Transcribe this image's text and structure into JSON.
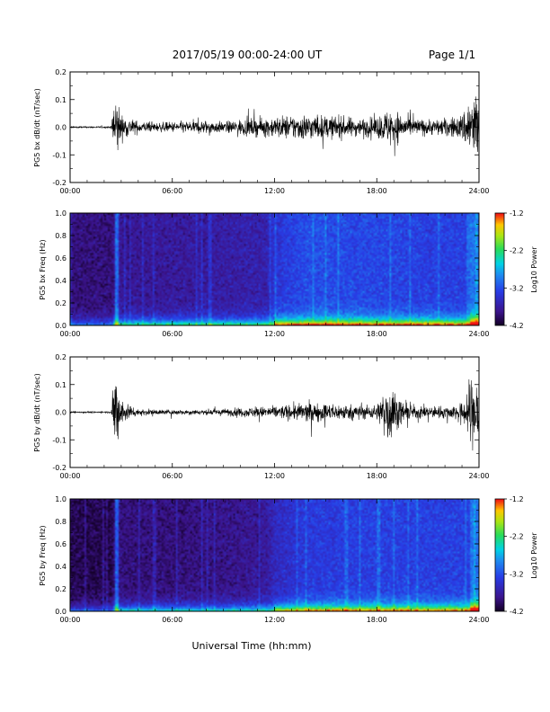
{
  "header": {
    "title": "2017/05/19  00:00-24:00 UT",
    "page": "Page 1/1"
  },
  "xlabel": "Universal Time (hh:mm)",
  "colorbar": {
    "label": "Log10 Power",
    "ticks": [
      "-1.2",
      "-2.2",
      "-3.2",
      "-4.2"
    ]
  },
  "chart_data": [
    {
      "type": "line",
      "title": "",
      "ylabel": "PG5 bx dB/dt (nT/sec)",
      "xlabel": "",
      "xlim": [
        "00:00",
        "24:00"
      ],
      "ylim": [
        -0.2,
        0.2
      ],
      "xticks": [
        "00:00",
        "06:00",
        "12:00",
        "18:00",
        "24:00"
      ],
      "yticks": [
        "0.2",
        "0.1",
        "0.0",
        "-0.1",
        "-0.2"
      ],
      "series": [
        {
          "x_hours": [
            0,
            2.4,
            2.6,
            2.7,
            3.0,
            3.5,
            4,
            5,
            6,
            7,
            8,
            9,
            10,
            11,
            12,
            13,
            14,
            15,
            16,
            17,
            18,
            18.8,
            19.2,
            20,
            21,
            22,
            23,
            23.5,
            24
          ],
          "amplitude": [
            0.005,
            0.005,
            0.2,
            0.2,
            0.07,
            0.05,
            0.035,
            0.025,
            0.03,
            0.035,
            0.04,
            0.03,
            0.045,
            0.05,
            0.06,
            0.07,
            0.075,
            0.065,
            0.06,
            0.05,
            0.06,
            0.11,
            0.09,
            0.05,
            0.045,
            0.05,
            0.07,
            0.2,
            0.2
          ]
        }
      ]
    },
    {
      "type": "heatmap",
      "title": "",
      "ylabel": "PG5 bx Freq (Hz)",
      "xlabel": "",
      "xlim": [
        "00:00",
        "24:00"
      ],
      "ylim": [
        0.0,
        1.0
      ],
      "xticks": [
        "00:00",
        "06:00",
        "12:00",
        "18:00",
        "24:00"
      ],
      "yticks": [
        "1.0",
        "0.8",
        "0.6",
        "0.4",
        "0.2",
        "0.0"
      ],
      "colorbar": {
        "min": -4.2,
        "max": -1.2
      },
      "background_log_power_by_hour": [
        [
          0,
          -3.9
        ],
        [
          2.5,
          -3.9
        ],
        [
          2.6,
          -3.6
        ],
        [
          3,
          -3.8
        ],
        [
          6,
          -3.75
        ],
        [
          9,
          -3.7
        ],
        [
          11.5,
          -3.65
        ],
        [
          12,
          -3.4
        ],
        [
          14,
          -3.2
        ],
        [
          18,
          -3.25
        ],
        [
          21,
          -3.3
        ],
        [
          24,
          -3.3
        ]
      ]
    },
    {
      "type": "line",
      "title": "",
      "ylabel": "PG5 by dB/dt (nT/sec)",
      "xlabel": "",
      "xlim": [
        "00:00",
        "24:00"
      ],
      "ylim": [
        -0.2,
        0.2
      ],
      "xticks": [
        "00:00",
        "06:00",
        "12:00",
        "18:00",
        "24:00"
      ],
      "yticks": [
        "0.2",
        "0.1",
        "0.0",
        "-0.1",
        "-0.2"
      ],
      "series": [
        {
          "x_hours": [
            0,
            2.4,
            2.6,
            2.7,
            3.0,
            3.5,
            4,
            5,
            6,
            7,
            8,
            9,
            10,
            11,
            12,
            13,
            14,
            15,
            16,
            17,
            18,
            18.8,
            19.2,
            20,
            21,
            22,
            23,
            23.5,
            24
          ],
          "amplitude": [
            0.005,
            0.005,
            0.2,
            0.2,
            0.08,
            0.04,
            0.02,
            0.015,
            0.015,
            0.015,
            0.015,
            0.02,
            0.025,
            0.03,
            0.035,
            0.045,
            0.055,
            0.05,
            0.045,
            0.04,
            0.04,
            0.2,
            0.08,
            0.04,
            0.035,
            0.035,
            0.05,
            0.2,
            0.2
          ]
        }
      ]
    },
    {
      "type": "heatmap",
      "title": "",
      "ylabel": "PG5 by Freq (Hz)",
      "xlabel": "Universal Time (hh:mm)",
      "xlim": [
        "00:00",
        "24:00"
      ],
      "ylim": [
        0.0,
        1.0
      ],
      "xticks": [
        "00:00",
        "06:00",
        "12:00",
        "18:00",
        "24:00"
      ],
      "yticks": [
        "1.0",
        "0.8",
        "0.6",
        "0.4",
        "0.2",
        "0.0"
      ],
      "colorbar": {
        "min": -4.2,
        "max": -1.2
      },
      "background_log_power_by_hour": [
        [
          0,
          -4.05
        ],
        [
          2.5,
          -4.05
        ],
        [
          2.6,
          -3.7
        ],
        [
          3,
          -3.9
        ],
        [
          6,
          -3.9
        ],
        [
          9,
          -3.85
        ],
        [
          11.5,
          -3.75
        ],
        [
          12,
          -3.55
        ],
        [
          14,
          -3.35
        ],
        [
          18,
          -3.3
        ],
        [
          21,
          -3.3
        ],
        [
          24,
          -3.3
        ]
      ]
    }
  ]
}
